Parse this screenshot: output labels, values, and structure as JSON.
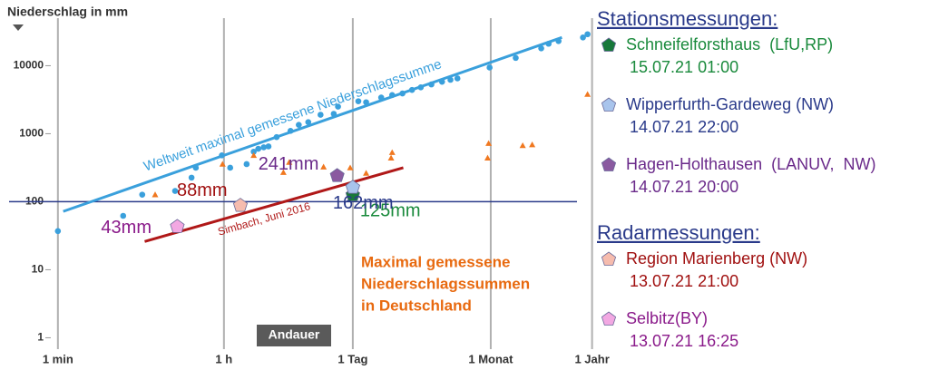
{
  "chart_data": {
    "type": "scatter",
    "title": "Niederschlag in mm",
    "x_label": "Andauer",
    "log_x": true,
    "log_y": true,
    "grid_x": true,
    "xlim": [
      0.3,
      620000
    ],
    "ylim": [
      0.68,
      50000
    ],
    "xticks": [
      {
        "value": 1,
        "label": "1 min"
      },
      {
        "value": 60,
        "label": "1 h"
      },
      {
        "value": 1440,
        "label": "1 Tag"
      },
      {
        "value": 43200,
        "label": "1 Monat"
      },
      {
        "value": 525600,
        "label": "1 Jahr"
      }
    ],
    "yticks": [
      1,
      10,
      100,
      1000,
      10000
    ],
    "reference_line": {
      "value": 100,
      "color": "#2a3a8a"
    },
    "series": [
      {
        "marker": "circle",
        "color": "#3aa0dc",
        "x": [
          1,
          5,
          8,
          18,
          27,
          30,
          57,
          70,
          105,
          125,
          140,
          160,
          180,
          220,
          310,
          380,
          480,
          650,
          900,
          1000,
          1650,
          2000,
          2900,
          3800,
          4900,
          6200,
          7700,
          10000,
          13000,
          16000,
          19000,
          42000,
          80000,
          150000,
          180000,
          230000,
          420000,
          470000
        ],
        "values": [
          37,
          62,
          127,
          144,
          226,
          316,
          480,
          316,
          357,
          544,
          600,
          630,
          650,
          890,
          1100,
          1350,
          1480,
          1900,
          1960,
          2500,
          3000,
          2900,
          3400,
          3700,
          3900,
          4400,
          4800,
          5300,
          5800,
          6200,
          6500,
          9400,
          13000,
          18000,
          21000,
          23000,
          26000,
          29000
        ]
      },
      {
        "marker": "triangle",
        "color": "#f07820",
        "x": [
          11,
          58,
          125,
          260,
          300,
          700,
          1350,
          2000,
          3700,
          3800,
          40000,
          41000,
          95000,
          120000,
          470000
        ],
        "values": [
          127,
          357,
          480,
          270,
          380,
          325,
          316,
          263,
          440,
          530,
          440,
          720,
          670,
          690,
          3800
        ]
      }
    ],
    "trend_lines": [
      {
        "label": "Weltweit maximal gemessene Niederschlagssumme",
        "color": "#3aa0dc",
        "x": [
          1.14,
          250000
        ],
        "values": [
          72,
          26000
        ]
      },
      {
        "label": "Simbach, Juni 2016",
        "color": "#b01818",
        "x": [
          8.5,
          5000
        ],
        "values": [
          26,
          316
        ]
      }
    ],
    "annotation": {
      "color": "#e86a10",
      "lines": [
        "Maximal gemessene",
        "Niederschlagssummen",
        "in Deutschland"
      ]
    },
    "legend_groups": [
      {
        "title": "Stationsmessungen:",
        "series": [
          {
            "name": "Schneifelforsthaus  (LfU,RP)",
            "time": "15.07.21 01:00",
            "color": "#1a8a3c",
            "marker_color": "#17783a",
            "x": [
              1440
            ],
            "values": [
              125
            ],
            "value_labels": [
              "125mm"
            ]
          },
          {
            "name": "Wipperfurth-Gardeweg (NW)",
            "time": "14.07.21 22:00",
            "color": "#2a3a8a",
            "marker_color": "#a8c4ec",
            "x": [
              1440
            ],
            "values": [
              162
            ],
            "value_labels": [
              "162mm"
            ]
          },
          {
            "name": "Hagen-Holthausen  (LANUV,  NW)",
            "time": "14.07.21 20:00",
            "color": "#6a2a8a",
            "marker_color": "#8a5aa0",
            "x": [
              980
            ],
            "values": [
              241
            ],
            "value_labels": [
              "241mm"
            ]
          }
        ]
      },
      {
        "title": "Radarmessungen:",
        "series": [
          {
            "name": "Region Marienberg (NW)",
            "time": "13.07.21 21:00",
            "color": "#a01010",
            "marker_color": "#f6bcae",
            "x": [
              90
            ],
            "values": [
              88
            ],
            "value_labels": [
              "88mm"
            ]
          },
          {
            "name": "Selbitz(BY)",
            "time": "13.07.21 16:25",
            "color": "#8a1a8a",
            "marker_color": "#f2a8e2",
            "x": [
              19
            ],
            "values": [
              43
            ],
            "value_labels": [
              "43mm"
            ]
          }
        ]
      }
    ]
  }
}
